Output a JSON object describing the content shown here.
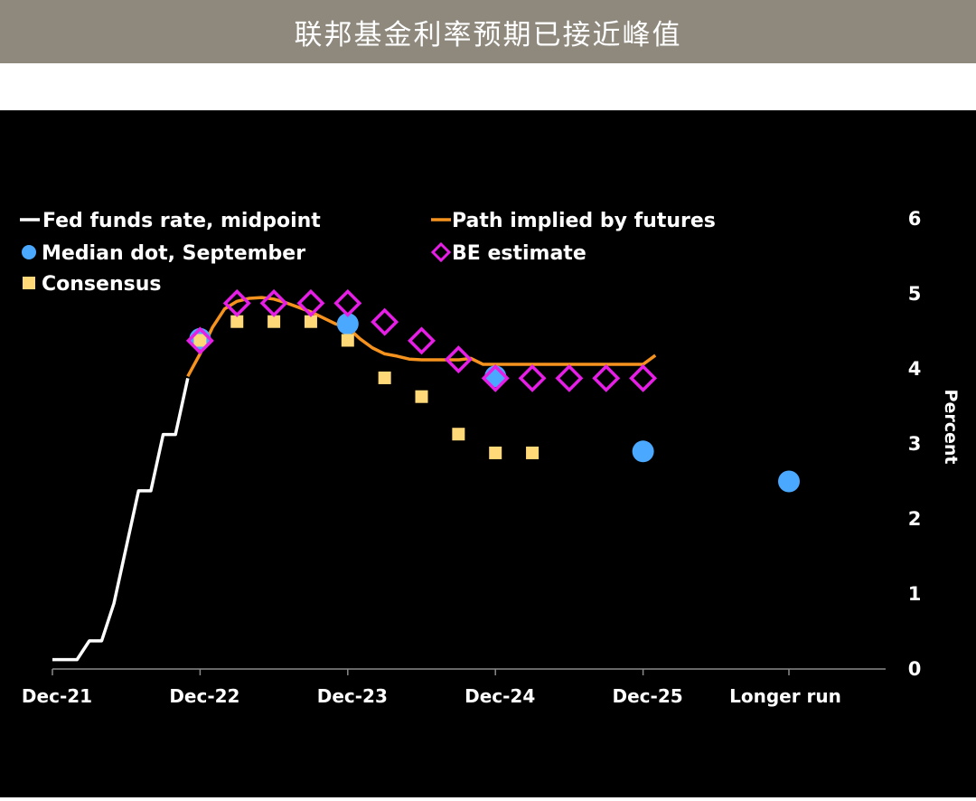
{
  "header": {
    "title": "联邦基金利率预期已接近峰值"
  },
  "colors": {
    "background": "#000000",
    "fed_funds": "#ffffff",
    "futures": "#f5931e",
    "median_dot": "#4aa8ff",
    "be_estimate": "#e61ee6",
    "consensus": "#ffd878",
    "title_bar": "#8f897d"
  },
  "chart_data": {
    "type": "line",
    "title": "联邦基金利率预期已接近峰值",
    "ylabel": "Percent",
    "xlabel": "",
    "ylim": [
      0,
      6
    ],
    "y_ticks": [
      0,
      1,
      2,
      3,
      4,
      5,
      6
    ],
    "x_ticks": [
      "Dec-21",
      "Dec-22",
      "Dec-23",
      "Dec-24",
      "Dec-25",
      "Longer run"
    ],
    "legend_placement": "top-left",
    "grid": false,
    "series": [
      {
        "name": "Fed funds rate, midpoint",
        "kind": "step-line",
        "points": [
          [
            "Dec-21",
            0.125
          ],
          [
            "Jan-22",
            0.125
          ],
          [
            "Feb-22",
            0.125
          ],
          [
            "Mar-22",
            0.375
          ],
          [
            "Apr-22",
            0.375
          ],
          [
            "May-22",
            0.875
          ],
          [
            "Jun-22",
            1.625
          ],
          [
            "Jul-22",
            2.375
          ],
          [
            "Aug-22",
            2.375
          ],
          [
            "Sep-22",
            3.125
          ],
          [
            "Oct-22",
            3.125
          ],
          [
            "Nov-22",
            3.875
          ]
        ]
      },
      {
        "name": "Path implied by futures",
        "kind": "line",
        "points": [
          [
            "Nov-22",
            3.9
          ],
          [
            "Dec-22",
            4.2
          ],
          [
            "Jan-23",
            4.55
          ],
          [
            "Feb-23",
            4.8
          ],
          [
            "Mar-23",
            4.9
          ],
          [
            "Apr-23",
            4.94
          ],
          [
            "May-23",
            4.95
          ],
          [
            "Jun-23",
            4.93
          ],
          [
            "Jul-23",
            4.88
          ],
          [
            "Aug-23",
            4.82
          ],
          [
            "Sep-23",
            4.76
          ],
          [
            "Oct-23",
            4.68
          ],
          [
            "Nov-23",
            4.6
          ],
          [
            "Dec-23",
            4.55
          ],
          [
            "Jan-24",
            4.4
          ],
          [
            "Feb-24",
            4.28
          ],
          [
            "Mar-24",
            4.2
          ],
          [
            "Apr-24",
            4.17
          ],
          [
            "May-24",
            4.13
          ],
          [
            "Jun-24",
            4.12
          ],
          [
            "Jul-24",
            4.12
          ],
          [
            "Aug-24",
            4.12
          ],
          [
            "Sep-24",
            4.12
          ],
          [
            "Oct-24",
            4.14
          ],
          [
            "Nov-24",
            4.06
          ],
          [
            "Dec-24",
            4.06
          ],
          [
            "Jun-25",
            4.06
          ],
          [
            "Dec-25",
            4.06
          ],
          [
            "Jan-26",
            4.18
          ]
        ]
      },
      {
        "name": "Median dot, September",
        "kind": "scatter-circle",
        "points": [
          [
            "Dec-22",
            4.4
          ],
          [
            "Dec-23",
            4.6
          ],
          [
            "Dec-24",
            3.9
          ],
          [
            "Dec-25",
            2.9
          ],
          [
            "Longer run",
            2.5
          ]
        ]
      },
      {
        "name": "BE estimate",
        "kind": "scatter-diamond",
        "points": [
          [
            "Dec-22",
            4.375
          ],
          [
            "Mar-23",
            4.875
          ],
          [
            "Jun-23",
            4.875
          ],
          [
            "Sep-23",
            4.875
          ],
          [
            "Dec-23",
            4.875
          ],
          [
            "Mar-24",
            4.625
          ],
          [
            "Jun-24",
            4.375
          ],
          [
            "Sep-24",
            4.125
          ],
          [
            "Dec-24",
            3.875
          ],
          [
            "Mar-25",
            3.875
          ],
          [
            "Jun-25",
            3.875
          ],
          [
            "Sep-25",
            3.875
          ],
          [
            "Dec-25",
            3.875
          ]
        ]
      },
      {
        "name": "Consensus",
        "kind": "scatter-square",
        "points": [
          [
            "Dec-22",
            4.38
          ],
          [
            "Mar-23",
            4.63
          ],
          [
            "Jun-23",
            4.63
          ],
          [
            "Sep-23",
            4.63
          ],
          [
            "Dec-23",
            4.38
          ],
          [
            "Mar-24",
            3.88
          ],
          [
            "Jun-24",
            3.63
          ],
          [
            "Sep-24",
            3.13
          ],
          [
            "Dec-24",
            2.88
          ],
          [
            "Mar-25",
            2.88
          ]
        ]
      }
    ]
  }
}
